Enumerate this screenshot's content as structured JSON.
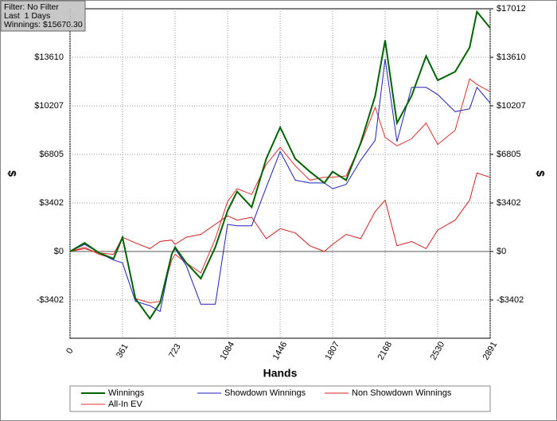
{
  "info": {
    "filter": "Filter: No Filter",
    "period": "Last  1 Days",
    "winnings": "Winnings: $15670.30"
  },
  "chart_data": {
    "type": "line",
    "x_label": "Hands",
    "y_label": "$",
    "y2_label": "$",
    "x": [
      0,
      100,
      200,
      300,
      361,
      450,
      550,
      620,
      700,
      723,
      800,
      900,
      1000,
      1084,
      1150,
      1250,
      1350,
      1446,
      1550,
      1650,
      1750,
      1807,
      1900,
      2000,
      2100,
      2168,
      2250,
      2350,
      2450,
      2530,
      2650,
      2750,
      2800,
      2891
    ],
    "series": [
      {
        "name": "Winnings",
        "color": "#006400",
        "width": 2,
        "values": [
          0,
          600,
          -100,
          -500,
          1000,
          -3300,
          -4700,
          -3600,
          -200,
          300,
          -800,
          -1900,
          300,
          2850,
          4200,
          3100,
          6500,
          8700,
          6500,
          5600,
          4800,
          5600,
          5000,
          7600,
          10900,
          14800,
          9000,
          10900,
          13700,
          12000,
          12600,
          14300,
          16800,
          15670
        ]
      },
      {
        "name": "Showdown Winnings",
        "color": "#2020c0",
        "width": 1,
        "values": [
          0,
          500,
          -100,
          -600,
          -800,
          -3500,
          -3800,
          -4200,
          -200,
          200,
          -1000,
          -3700,
          -3700,
          1900,
          1800,
          1800,
          4500,
          7000,
          5000,
          4800,
          4800,
          4400,
          4700,
          6400,
          7800,
          13500,
          7700,
          11500,
          11500,
          11000,
          9800,
          10000,
          11500,
          10400
        ]
      },
      {
        "name": "Non Showdown Winnings",
        "color": "#d02020",
        "width": 1,
        "values": [
          0,
          200,
          -100,
          -200,
          1000,
          600,
          200,
          700,
          800,
          500,
          1000,
          1200,
          1900,
          2500,
          2200,
          2400,
          900,
          1600,
          1300,
          400,
          0,
          500,
          1200,
          900,
          2800,
          3600,
          400,
          700,
          200,
          1500,
          2200,
          3600,
          5500,
          5200
        ]
      },
      {
        "name": "All-In EV",
        "color": "#e03030",
        "width": 1,
        "values": [
          0,
          300,
          -200,
          -500,
          900,
          -3300,
          -3600,
          -3500,
          -600,
          -200,
          -800,
          -1500,
          900,
          3500,
          4400,
          4000,
          6100,
          7300,
          6000,
          5000,
          5200,
          5200,
          5300,
          7500,
          10100,
          8000,
          7400,
          7900,
          9000,
          7500,
          8500,
          12100,
          11700,
          11200
        ]
      }
    ],
    "xlim": [
      0,
      2891
    ],
    "xticks": [
      0,
      361,
      723,
      1084,
      1446,
      1807,
      2168,
      2530,
      2891
    ],
    "ylim": [
      -6080,
      17012
    ],
    "yticks": [
      {
        "value": -3402,
        "label": "-$3402"
      },
      {
        "value": 0,
        "label": "$0"
      },
      {
        "value": 3402,
        "label": "$3402"
      },
      {
        "value": 6805,
        "label": "$6805"
      },
      {
        "value": 10207,
        "label": "$10207"
      },
      {
        "value": 13610,
        "label": "$13610"
      }
    ],
    "y2lim": [
      -6080,
      17012
    ],
    "y2ticks": [
      {
        "value": -3402,
        "label": "-$3402"
      },
      {
        "value": 0,
        "label": "$0"
      },
      {
        "value": 3402,
        "label": "$3402"
      },
      {
        "value": 6805,
        "label": "$6805"
      },
      {
        "value": 10207,
        "label": "$10207"
      },
      {
        "value": 13610,
        "label": "$13610"
      },
      {
        "value": 17012,
        "label": "$17012"
      }
    ],
    "grid": true,
    "legend": "bottom"
  }
}
